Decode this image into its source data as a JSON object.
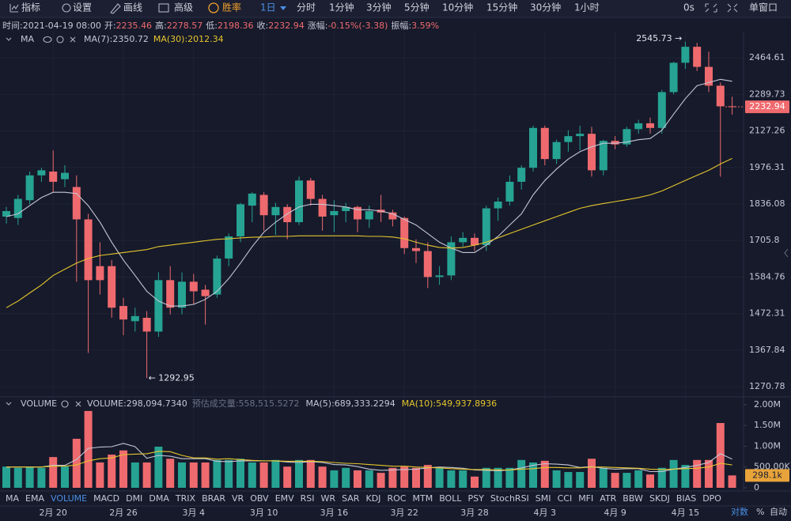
{
  "toolbar": {
    "items": [
      "指标",
      "设置",
      "画线",
      "高级"
    ],
    "winrate": "胜率",
    "period": "1日",
    "periods": [
      "分时",
      "1分钟",
      "3分钟",
      "5分钟",
      "10分钟",
      "15分钟",
      "30分钟",
      "1小时"
    ],
    "timer": "0s",
    "window": "单窗口"
  },
  "info": [
    {
      "label": "时间:",
      "value": "2021-04-19 08:00"
    },
    {
      "label": "开:",
      "value": "2235.46"
    },
    {
      "label": "高:",
      "value": "2278.57"
    },
    {
      "label": "低:",
      "value": "2198.36"
    },
    {
      "label": "收:",
      "value": "2232.94"
    },
    {
      "label": "涨幅:",
      "value": "-0.15%(-3.38)"
    },
    {
      "label": "振幅:",
      "value": "3.59%"
    }
  ],
  "tabs": {
    "items": [
      "MA",
      "EMA",
      "VOLUME",
      "MACD",
      "DMI",
      "DMA",
      "TRIX",
      "BRAR",
      "VR",
      "OBV",
      "EMV",
      "RSI",
      "WR",
      "SAR",
      "KDJ",
      "ROC",
      "MTM",
      "BOLL",
      "PSY",
      "StochRSI",
      "SMI",
      "CCI",
      "MFI",
      "ATR",
      "BBW",
      "SKDJ",
      "BIAS",
      "DPO"
    ],
    "active": "VOLUME",
    "right": [
      "对数",
      "%",
      "自动"
    ]
  },
  "chart_data": [
    {
      "type": "candlestick",
      "indicator": "MA",
      "legend_separator": ":",
      "log": true,
      "grid": true,
      "up_color": "#26a393",
      "down_color": "#ef6a6e",
      "categories": [
        null,
        null,
        null,
        null,
        "2月 20",
        null,
        null,
        null,
        null,
        null,
        "2月 26",
        null,
        null,
        null,
        null,
        null,
        "3月 4",
        null,
        null,
        null,
        null,
        null,
        "3月 10",
        null,
        null,
        null,
        null,
        null,
        "3月 16",
        null,
        null,
        null,
        null,
        null,
        "3月 22",
        null,
        null,
        null,
        null,
        null,
        "3月 28",
        null,
        null,
        null,
        null,
        null,
        "4月 3",
        null,
        null,
        null,
        null,
        null,
        "4月 9",
        null,
        null,
        null,
        null,
        null,
        "4月 15",
        null,
        null,
        null,
        null
      ],
      "open": [
        1790,
        1785,
        1850,
        1945,
        1960,
        1930,
        1900,
        1780,
        1620,
        1620,
        1495,
        1450,
        1460,
        1420,
        1575,
        1490,
        1570,
        1545,
        1530,
        1645,
        1720,
        1830,
        1870,
        1795,
        1825,
        1770,
        1925,
        1855,
        1795,
        1810,
        1825,
        1780,
        1815,
        1805,
        1785,
        1680,
        1670,
        1585,
        1590,
        1700,
        1715,
        1690,
        1820,
        1845,
        1920,
        1975,
        2140,
        2010,
        2080,
        2105,
        2115,
        1965,
        2085,
        2070,
        2135,
        2160,
        2140,
        2300,
        2440,
        2520,
        2420,
        2330,
        2235.46
      ],
      "high": [
        1825,
        1870,
        1960,
        1975,
        2045,
        1985,
        1945,
        1800,
        1700,
        1640,
        1520,
        1490,
        1480,
        1600,
        1620,
        1600,
        1595,
        1560,
        1655,
        1730,
        1840,
        1880,
        1880,
        1840,
        1835,
        1940,
        1935,
        1870,
        1850,
        1840,
        1830,
        1830,
        1870,
        1815,
        1790,
        1710,
        1700,
        1620,
        1720,
        1735,
        1730,
        1830,
        1860,
        1945,
        1985,
        2150,
        2150,
        2090,
        2130,
        2150,
        2145,
        2090,
        2105,
        2145,
        2175,
        2185,
        2310,
        2445,
        2545.73,
        2540,
        2495,
        2345,
        2278.57
      ],
      "low": [
        1765,
        1760,
        1835,
        1920,
        1880,
        1900,
        1570,
        1360,
        1530,
        1460,
        1410,
        1420,
        1292.95,
        1405,
        1470,
        1470,
        1500,
        1440,
        1520,
        1620,
        1700,
        1770,
        1740,
        1725,
        1710,
        1760,
        1830,
        1740,
        1735,
        1770,
        1735,
        1750,
        1770,
        1755,
        1660,
        1630,
        1550,
        1560,
        1575,
        1685,
        1670,
        1670,
        1775,
        1830,
        1890,
        1960,
        1985,
        1990,
        2040,
        2045,
        1940,
        1945,
        2050,
        2060,
        2115,
        2115,
        2115,
        2290,
        2410,
        2400,
        2300,
        1940,
        2198.36
      ],
      "close": [
        1810,
        1855,
        1945,
        1965,
        1920,
        1955,
        1780,
        1575,
        1575,
        1490,
        1455,
        1465,
        1420,
        1575,
        1490,
        1570,
        1540,
        1525,
        1645,
        1720,
        1835,
        1875,
        1795,
        1825,
        1770,
        1925,
        1855,
        1790,
        1810,
        1825,
        1780,
        1810,
        1805,
        1780,
        1680,
        1670,
        1585,
        1590,
        1700,
        1715,
        1690,
        1820,
        1845,
        1920,
        1975,
        2140,
        2010,
        2080,
        2105,
        2115,
        1965,
        2085,
        2070,
        2135,
        2160,
        2140,
        2300,
        2440,
        2520,
        2420,
        2330,
        2235,
        2232.94
      ],
      "series": [
        {
          "name": "MA(7)",
          "color": "#c5c6d6",
          "values": [
            1790,
            1800,
            1830,
            1860,
            1880,
            1880,
            1875,
            1830,
            1770,
            1700,
            1640,
            1590,
            1540,
            1510,
            1495,
            1495,
            1500,
            1515,
            1540,
            1580,
            1630,
            1685,
            1735,
            1770,
            1800,
            1825,
            1835,
            1835,
            1830,
            1825,
            1815,
            1815,
            1810,
            1800,
            1780,
            1760,
            1730,
            1700,
            1680,
            1665,
            1665,
            1690,
            1720,
            1760,
            1800,
            1870,
            1925,
            1970,
            2010,
            2040,
            2060,
            2075,
            2075,
            2080,
            2090,
            2095,
            2130,
            2200,
            2270,
            2330,
            2345,
            2360,
            2350.72
          ]
        },
        {
          "name": "MA(30)",
          "color": "#e6c62c",
          "values": [
            1490,
            1510,
            1535,
            1560,
            1590,
            1610,
            1630,
            1645,
            1655,
            1660,
            1665,
            1670,
            1675,
            1685,
            1690,
            1695,
            1700,
            1705,
            1710,
            1712,
            1715,
            1717,
            1718,
            1720,
            1720,
            1722,
            1722,
            1722,
            1722,
            1722,
            1722,
            1720,
            1720,
            1718,
            1712,
            1700,
            1690,
            1682,
            1680,
            1682,
            1690,
            1700,
            1715,
            1730,
            1745,
            1760,
            1775,
            1790,
            1805,
            1820,
            1830,
            1838,
            1845,
            1852,
            1860,
            1870,
            1885,
            1905,
            1925,
            1945,
            1965,
            1990,
            2012.34
          ]
        }
      ],
      "annotations": [
        {
          "label": "2545.73 →",
          "value": 2545.73
        },
        {
          "label": "← 1292.95",
          "value": 1292.95
        }
      ],
      "ylim": [
        1249,
        2598
      ],
      "yticks": [
        1270.78,
        1367.84,
        1472.31,
        1584.76,
        1705.8,
        1836.08,
        1976.31,
        2127.26,
        2289.73,
        2464.61
      ]
    },
    {
      "type": "bar",
      "name": "VOLUME",
      "legend_separator": ":",
      "grid": true,
      "values": [
        510000,
        480000,
        510000,
        480000,
        740000,
        510000,
        1180000,
        1850000,
        610000,
        800000,
        900000,
        610000,
        610000,
        990000,
        700000,
        610000,
        610000,
        610000,
        670000,
        670000,
        700000,
        610000,
        610000,
        670000,
        510000,
        670000,
        670000,
        510000,
        420000,
        480000,
        420000,
        420000,
        360000,
        480000,
        510000,
        480000,
        550000,
        480000,
        420000,
        420000,
        270000,
        480000,
        480000,
        480000,
        670000,
        610000,
        650000,
        420000,
        380000,
        380000,
        700000,
        480000,
        360000,
        360000,
        420000,
        320000,
        480000,
        670000,
        550000,
        670000,
        670000,
        1560000,
        298094.734
      ],
      "last_label": "298,094.7340",
      "tag_label": "298.1k",
      "tag_color": "#e8a33a",
      "estimate": {
        "label": "预估成交量:",
        "value": "558,515.5272"
      },
      "series": [
        {
          "name": "MA(5)",
          "color": "#c5c6d6",
          "last_label": "689,333.2294",
          "values": [
            500000,
            500000,
            500000,
            500000,
            540000,
            540000,
            680000,
            950000,
            980000,
            990000,
            1070000,
            990000,
            710000,
            780000,
            760000,
            700000,
            700000,
            700000,
            640000,
            630000,
            650000,
            650000,
            650000,
            650000,
            620000,
            610000,
            630000,
            610000,
            560000,
            550000,
            510000,
            450000,
            420000,
            430000,
            440000,
            450000,
            480000,
            500000,
            490000,
            470000,
            430000,
            420000,
            410000,
            430000,
            480000,
            540000,
            580000,
            570000,
            550000,
            490000,
            510000,
            470000,
            450000,
            460000,
            460000,
            390000,
            390000,
            450000,
            490000,
            540000,
            610000,
            820000,
            689333.2294
          ]
        },
        {
          "name": "MA(10)",
          "color": "#e6c62c",
          "last_label": "549,937.8936",
          "values": [
            500000,
            500000,
            500000,
            500000,
            520000,
            520000,
            550000,
            650000,
            700000,
            720000,
            800000,
            810000,
            820000,
            880000,
            870000,
            780000,
            720000,
            720000,
            690000,
            700000,
            680000,
            660000,
            650000,
            650000,
            640000,
            640000,
            640000,
            630000,
            610000,
            590000,
            580000,
            560000,
            540000,
            520000,
            520000,
            500000,
            490000,
            480000,
            460000,
            450000,
            440000,
            440000,
            430000,
            430000,
            450000,
            460000,
            490000,
            490000,
            480000,
            480000,
            500000,
            500000,
            490000,
            480000,
            470000,
            450000,
            440000,
            450000,
            460000,
            470000,
            500000,
            590000,
            549937.8936
          ]
        }
      ],
      "ylim": [
        0,
        2170000
      ],
      "yticks": [
        0,
        {
          "value": 500000,
          "label": "500.00K"
        },
        {
          "value": 1000000,
          "label": "1.00M"
        },
        {
          "value": 1500000,
          "label": "1.50M"
        },
        {
          "value": 2000000,
          "label": "2.00M"
        }
      ]
    }
  ]
}
